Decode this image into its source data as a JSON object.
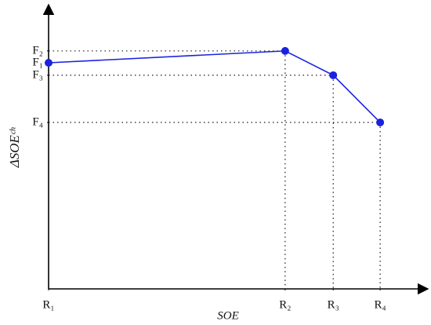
{
  "chart_data": {
    "type": "line",
    "x_label": "SOE",
    "y_label": "ΔSOEᶜʰ",
    "x": [
      0,
      62.5,
      75.2,
      87.6
    ],
    "values": [
      80,
      84.2,
      75.6,
      58.9
    ],
    "color": "#1a22e0",
    "xlim": [
      0,
      100
    ],
    "ylim": [
      0,
      100
    ],
    "xticks": [
      {
        "value": 0,
        "label": "R₁"
      },
      {
        "value": 62.5,
        "label": "R₂"
      },
      {
        "value": 75.2,
        "label": "R₃"
      },
      {
        "value": 87.6,
        "label": "R₄"
      }
    ],
    "yticks": [
      {
        "value": 84.2,
        "label": "F₂"
      },
      {
        "value": 80,
        "label": "F₁"
      },
      {
        "value": 75.6,
        "label": "F₃"
      },
      {
        "value": 58.9,
        "label": "F₄"
      }
    ]
  }
}
